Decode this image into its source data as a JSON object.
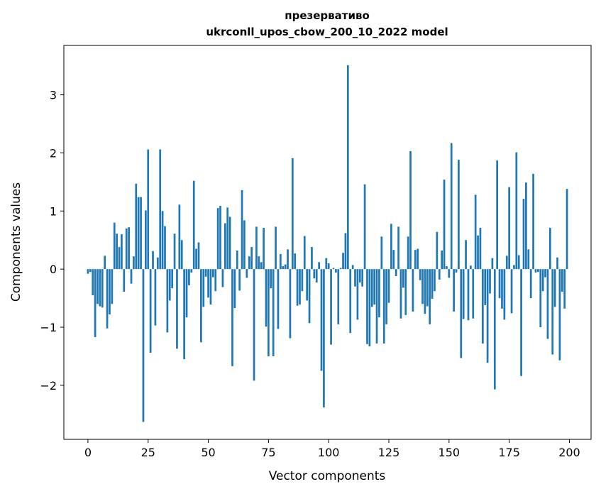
{
  "chart_data": {
    "type": "bar",
    "title": "презервативо",
    "subtitle": "ukrconll_upos_cbow_200_10_2022 model",
    "xlabel": "Vector components",
    "ylabel": "Components values",
    "xlim": [
      -10,
      209
    ],
    "ylim": [
      -2.93,
      3.85
    ],
    "x_ticks": [
      0,
      25,
      50,
      75,
      100,
      125,
      150,
      175,
      200
    ],
    "y_ticks": [
      -2,
      -1,
      0,
      1,
      2,
      3
    ],
    "x_tick_labels": [
      "0",
      "25",
      "50",
      "75",
      "100",
      "125",
      "150",
      "175",
      "200"
    ],
    "y_tick_labels": [
      "−2",
      "−1",
      "0",
      "1",
      "2",
      "3"
    ],
    "grid": false,
    "bar_color": "#1f77b4",
    "values": [
      -0.08,
      -0.05,
      -0.45,
      -1.17,
      -0.6,
      -0.64,
      -0.66,
      0.23,
      -1.02,
      -0.78,
      -0.6,
      0.8,
      0.61,
      0.38,
      0.6,
      -0.39,
      0.7,
      0.72,
      -0.25,
      0.22,
      1.47,
      1.24,
      1.24,
      -2.63,
      1.01,
      2.06,
      -1.44,
      0.31,
      -0.97,
      0.2,
      2.06,
      1.0,
      0.74,
      -1.09,
      -0.54,
      -0.33,
      0.61,
      -1.37,
      1.11,
      0.5,
      -1.55,
      -0.83,
      -0.28,
      -0.06,
      1.52,
      0.35,
      0.46,
      -1.26,
      -0.65,
      -0.13,
      -0.49,
      -0.61,
      -0.14,
      -0.38,
      1.05,
      1.09,
      -0.31,
      0.79,
      1.06,
      0.9,
      -1.67,
      -0.67,
      0.32,
      -0.37,
      1.36,
      0.84,
      -0.15,
      0.22,
      0.38,
      -1.92,
      0.73,
      0.22,
      0.12,
      0.71,
      -0.99,
      -1.5,
      -0.33,
      -1.5,
      0.73,
      -1.03,
      0.26,
      0.05,
      0.08,
      0.34,
      -1.19,
      1.91,
      0.27,
      -0.63,
      -0.61,
      -0.38,
      0.57,
      -0.54,
      -0.93,
      0.38,
      -0.16,
      -0.23,
      0.12,
      -1.75,
      -2.38,
      0.19,
      0.1,
      -1.3,
      0.02,
      -0.06,
      -0.95,
      0.02,
      0.28,
      0.62,
      3.51,
      -1.1,
      0.07,
      -0.3,
      -0.87,
      -0.23,
      -0.3,
      1.46,
      -1.29,
      -1.33,
      -0.65,
      -0.61,
      -1.28,
      -0.83,
      0.56,
      -1.28,
      -0.95,
      -0.58,
      0.78,
      0.33,
      -0.12,
      0.73,
      -0.85,
      -0.32,
      -0.79,
      0.56,
      2.03,
      -0.73,
      0.33,
      0.35,
      -0.19,
      -0.6,
      -0.77,
      -0.64,
      -0.95,
      -0.51,
      -0.38,
      0.64,
      -0.18,
      0.32,
      1.54,
      0.05,
      -0.15,
      2.17,
      -0.73,
      -0.06,
      1.88,
      -1.53,
      -0.86,
      0.5,
      -0.88,
      0.06,
      -0.85,
      1.28,
      0.58,
      0.71,
      -1.28,
      -0.62,
      -1.61,
      -0.42,
      0.19,
      -2.07,
      1.87,
      -0.5,
      -0.68,
      -0.87,
      0.23,
      1.41,
      -0.76,
      0.07,
      2.01,
      0.24,
      -1.84,
      1.21,
      1.49,
      0.34,
      -0.5,
      1.64,
      -0.06,
      -0.05,
      -1.0,
      -0.38,
      -0.14,
      -1.2,
      0.71,
      -1.47,
      -0.65,
      0.2,
      -1.57,
      -0.39,
      -0.68,
      1.38
    ]
  }
}
